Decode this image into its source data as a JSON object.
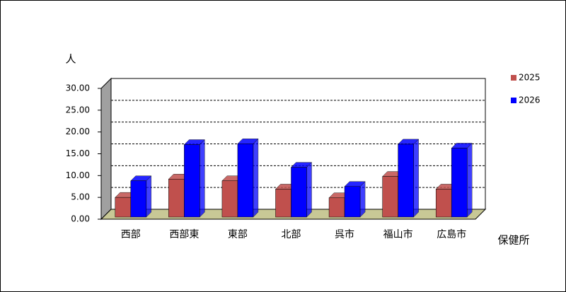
{
  "chart_data": {
    "type": "bar3d",
    "y_label": "人",
    "x_label": "保健所",
    "categories": [
      "西部",
      "西部東",
      "東部",
      "北部",
      "呉市",
      "福山市",
      "広島市"
    ],
    "series": [
      {
        "name": "2025",
        "color": "#c0504d",
        "values": [
          5.0,
          9.2,
          8.8,
          6.9,
          4.9,
          9.8,
          6.9
        ]
      },
      {
        "name": "2026",
        "color": "#0000ff",
        "values": [
          8.8,
          17.1,
          17.3,
          11.9,
          7.5,
          17.2,
          16.3
        ]
      }
    ],
    "ylim": [
      0,
      30
    ],
    "yticks": [
      {
        "value": 0,
        "label": "0.00"
      },
      {
        "value": 5,
        "label": "5.00"
      },
      {
        "value": 10,
        "label": "10.00"
      },
      {
        "value": 15,
        "label": "15.00"
      },
      {
        "value": 20,
        "label": "20.00"
      },
      {
        "value": 25,
        "label": "25.00"
      },
      {
        "value": 30,
        "label": "30.00"
      }
    ],
    "grid": true,
    "legend": "right"
  }
}
